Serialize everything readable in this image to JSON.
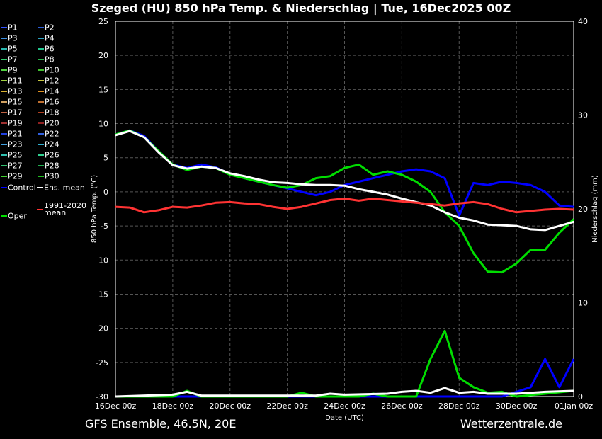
{
  "header": {
    "title": "Szeged  (HU)  850 hPa Temp. & Niederschlag | Tue, 16Dec2025 00Z"
  },
  "footer": {
    "left": "GFS Ensemble, 46.5N, 20E",
    "right": "Wetterzentrale.de"
  },
  "colors": {
    "background": "#000000",
    "control": "#0000ff",
    "ens_mean": "#ffffff",
    "climate_mean": "#ff3333",
    "oper": "#00dd00",
    "grid": "#555555"
  },
  "legend": [
    {
      "label": "P1",
      "color": "#3050ff"
    },
    {
      "label": "P2",
      "color": "#2a5cd6"
    },
    {
      "label": "P3",
      "color": "#3a8ee0"
    },
    {
      "label": "P4",
      "color": "#2aa0c0"
    },
    {
      "label": "P5",
      "color": "#28b8b0"
    },
    {
      "label": "P6",
      "color": "#22c890"
    },
    {
      "label": "P7",
      "color": "#30d070"
    },
    {
      "label": "P8",
      "color": "#28b850"
    },
    {
      "label": "P9",
      "color": "#50d040"
    },
    {
      "label": "P10",
      "color": "#40c030"
    },
    {
      "label": "P11",
      "color": "#a0d040"
    },
    {
      "label": "P12",
      "color": "#c8c840"
    },
    {
      "label": "P13",
      "color": "#d8b030"
    },
    {
      "label": "P14",
      "color": "#e09020"
    },
    {
      "label": "P15",
      "color": "#d0a060"
    },
    {
      "label": "P16",
      "color": "#c07030"
    },
    {
      "label": "P17",
      "color": "#c06040"
    },
    {
      "label": "P18",
      "color": "#b04020"
    },
    {
      "label": "P19",
      "color": "#a03030"
    },
    {
      "label": "P20",
      "color": "#902020"
    },
    {
      "label": "P21",
      "color": "#2040e0"
    },
    {
      "label": "P22",
      "color": "#3060e0"
    },
    {
      "label": "P23",
      "color": "#40a0e0"
    },
    {
      "label": "P24",
      "color": "#30b0d0"
    },
    {
      "label": "P25",
      "color": "#30c0b0"
    },
    {
      "label": "P26",
      "color": "#30d090"
    },
    {
      "label": "P27",
      "color": "#30c070"
    },
    {
      "label": "P28",
      "color": "#20b050"
    },
    {
      "label": "P29",
      "color": "#40d030"
    },
    {
      "label": "P30",
      "color": "#20c020"
    },
    {
      "label": "Control",
      "color": "#0000ff"
    },
    {
      "label": "Ens. mean",
      "color": "#ffffff"
    },
    {
      "label": "Oper",
      "color": "#00dd00"
    },
    {
      "label": "1991-2020 mean",
      "color": "#ff3333"
    }
  ],
  "chart_data": {
    "type": "line",
    "title": "Szeged  (HU)  850 hPa Temp. & Niederschlag | Tue, 16Dec2025 00Z",
    "xlabel": "Date (UTC)",
    "ylabel": "850 hPa Temp. (°C)",
    "ylabel_right": "Niederschlag (mm)",
    "x_ticks": [
      "16Dec 00z",
      "18Dec 00z",
      "20Dec 00z",
      "22Dec 00z",
      "24Dec 00z",
      "26Dec 00z",
      "28Dec 00z",
      "30Dec 00z",
      "01Jan 00z"
    ],
    "xlim": [
      0,
      16
    ],
    "x_unit": "days from 16Dec2025 00z",
    "ylim": [
      -30,
      25
    ],
    "y_ticks": [
      -30,
      -25,
      -20,
      -15,
      -10,
      -5,
      0,
      5,
      10,
      15,
      20,
      25
    ],
    "ylim_right": [
      0,
      40
    ],
    "y_ticks_right": [
      0,
      10,
      20,
      30,
      40
    ],
    "grid": true,
    "series": [
      {
        "name": "Control",
        "kind": "temp",
        "color": "#0000ff",
        "points": [
          [
            0,
            8.4
          ],
          [
            0.5,
            9
          ],
          [
            1,
            8.2
          ],
          [
            1.5,
            6
          ],
          [
            2,
            4
          ],
          [
            2.5,
            3.5
          ],
          [
            3,
            4
          ],
          [
            3.5,
            3.6
          ],
          [
            4,
            2.6
          ],
          [
            4.5,
            2
          ],
          [
            5,
            1.5
          ],
          [
            5.5,
            1
          ],
          [
            6,
            0.5
          ],
          [
            6.5,
            0
          ],
          [
            7,
            -0.5
          ],
          [
            7.5,
            0
          ],
          [
            8,
            1
          ],
          [
            8.5,
            1.5
          ],
          [
            9,
            2
          ],
          [
            9.5,
            2.5
          ],
          [
            10,
            3
          ],
          [
            10.5,
            3.3
          ],
          [
            11,
            3
          ],
          [
            11.5,
            2
          ],
          [
            12,
            -3.5
          ],
          [
            12.5,
            1.3
          ],
          [
            13,
            1
          ],
          [
            13.5,
            1.5
          ],
          [
            14,
            1.3
          ],
          [
            14.5,
            1
          ],
          [
            15,
            0
          ],
          [
            15.5,
            -2
          ],
          [
            16,
            -2.2
          ]
        ]
      },
      {
        "name": "Oper",
        "kind": "temp",
        "color": "#00dd00",
        "points": [
          [
            0,
            8.4
          ],
          [
            0.5,
            9
          ],
          [
            1,
            8
          ],
          [
            1.5,
            6
          ],
          [
            2,
            4
          ],
          [
            2.5,
            3.2
          ],
          [
            3,
            3.7
          ],
          [
            3.5,
            3.5
          ],
          [
            4,
            2.5
          ],
          [
            4.5,
            2
          ],
          [
            5,
            1.5
          ],
          [
            5.5,
            1
          ],
          [
            6,
            0.6
          ],
          [
            6.5,
            1
          ],
          [
            7,
            2
          ],
          [
            7.5,
            2.3
          ],
          [
            8,
            3.5
          ],
          [
            8.5,
            4
          ],
          [
            9,
            2.5
          ],
          [
            9.5,
            3
          ],
          [
            10,
            2.5
          ],
          [
            10.5,
            1.5
          ],
          [
            11,
            0
          ],
          [
            11.5,
            -3
          ],
          [
            12,
            -5
          ],
          [
            12.5,
            -9
          ],
          [
            13,
            -11.7
          ],
          [
            13.5,
            -11.8
          ],
          [
            14,
            -10.5
          ],
          [
            14.5,
            -8.5
          ],
          [
            15,
            -8.5
          ],
          [
            15.5,
            -6
          ],
          [
            16,
            -4
          ]
        ]
      },
      {
        "name": "Ens. mean",
        "kind": "temp",
        "color": "#ffffff",
        "points": [
          [
            0,
            8.3
          ],
          [
            0.5,
            8.9
          ],
          [
            1,
            8
          ],
          [
            1.5,
            5.8
          ],
          [
            2,
            3.9
          ],
          [
            2.5,
            3.4
          ],
          [
            3,
            3.7
          ],
          [
            3.5,
            3.5
          ],
          [
            4,
            2.7
          ],
          [
            4.5,
            2.3
          ],
          [
            5,
            1.8
          ],
          [
            5.5,
            1.4
          ],
          [
            6,
            1.3
          ],
          [
            6.5,
            1.1
          ],
          [
            7,
            1
          ],
          [
            7.5,
            1
          ],
          [
            8,
            0.9
          ],
          [
            8.5,
            0.4
          ],
          [
            9,
            0
          ],
          [
            9.5,
            -0.4
          ],
          [
            10,
            -1
          ],
          [
            10.5,
            -1.5
          ],
          [
            11,
            -2
          ],
          [
            11.5,
            -3
          ],
          [
            12,
            -3.8
          ],
          [
            12.5,
            -4.2
          ],
          [
            13,
            -4.8
          ],
          [
            13.5,
            -4.9
          ],
          [
            14,
            -5
          ],
          [
            14.5,
            -5.5
          ],
          [
            15,
            -5.6
          ],
          [
            15.5,
            -5
          ],
          [
            16,
            -4.4
          ]
        ]
      },
      {
        "name": "1991-2020 mean",
        "kind": "temp",
        "color": "#ff3333",
        "points": [
          [
            0,
            -2.2
          ],
          [
            0.5,
            -2.3
          ],
          [
            1,
            -3
          ],
          [
            1.5,
            -2.7
          ],
          [
            2,
            -2.2
          ],
          [
            2.5,
            -2.3
          ],
          [
            3,
            -2
          ],
          [
            3.5,
            -1.6
          ],
          [
            4,
            -1.5
          ],
          [
            4.5,
            -1.7
          ],
          [
            5,
            -1.8
          ],
          [
            5.5,
            -2.2
          ],
          [
            6,
            -2.5
          ],
          [
            6.5,
            -2.2
          ],
          [
            7,
            -1.7
          ],
          [
            7.5,
            -1.2
          ],
          [
            8,
            -1
          ],
          [
            8.5,
            -1.3
          ],
          [
            9,
            -1
          ],
          [
            9.5,
            -1.2
          ],
          [
            10,
            -1.4
          ],
          [
            10.5,
            -1.6
          ],
          [
            11,
            -1.8
          ],
          [
            11.5,
            -2
          ],
          [
            12,
            -1.7
          ],
          [
            12.5,
            -1.5
          ],
          [
            13,
            -1.8
          ],
          [
            13.5,
            -2.5
          ],
          [
            14,
            -3
          ],
          [
            14.5,
            -2.8
          ],
          [
            15,
            -2.6
          ],
          [
            15.5,
            -2.5
          ],
          [
            16,
            -2.6
          ]
        ]
      },
      {
        "name": "Control",
        "kind": "precip",
        "color": "#0000ff",
        "points": [
          [
            0,
            0
          ],
          [
            13.5,
            0
          ],
          [
            14,
            0.5
          ],
          [
            14.5,
            1
          ],
          [
            15,
            4
          ],
          [
            15.5,
            1
          ],
          [
            16,
            4
          ]
        ]
      },
      {
        "name": "Oper",
        "kind": "precip",
        "color": "#00dd00",
        "points": [
          [
            0,
            0
          ],
          [
            2,
            0
          ],
          [
            2.5,
            0.6
          ],
          [
            3,
            0
          ],
          [
            6,
            0
          ],
          [
            6.5,
            0.4
          ],
          [
            7,
            0
          ],
          [
            8.5,
            0
          ],
          [
            9,
            0.3
          ],
          [
            9.5,
            0
          ],
          [
            10.5,
            0
          ],
          [
            11,
            4
          ],
          [
            11.5,
            7
          ],
          [
            12,
            2
          ],
          [
            12.5,
            1
          ],
          [
            13,
            0.4
          ],
          [
            13.5,
            0.5
          ],
          [
            14,
            0
          ],
          [
            16,
            0.6
          ]
        ]
      },
      {
        "name": "Ens. mean",
        "kind": "precip",
        "color": "#ffffff",
        "points": [
          [
            0,
            0
          ],
          [
            2,
            0.2
          ],
          [
            2.5,
            0.5
          ],
          [
            3,
            0.1
          ],
          [
            7,
            0.1
          ],
          [
            7.5,
            0.3
          ],
          [
            8,
            0.2
          ],
          [
            9.5,
            0.3
          ],
          [
            10,
            0.5
          ],
          [
            10.5,
            0.6
          ],
          [
            11,
            0.4
          ],
          [
            11.5,
            0.9
          ],
          [
            12,
            0.4
          ],
          [
            12.5,
            0.5
          ],
          [
            13,
            0.3
          ],
          [
            14,
            0.3
          ],
          [
            15,
            0.5
          ],
          [
            16,
            0.6
          ]
        ]
      }
    ]
  }
}
